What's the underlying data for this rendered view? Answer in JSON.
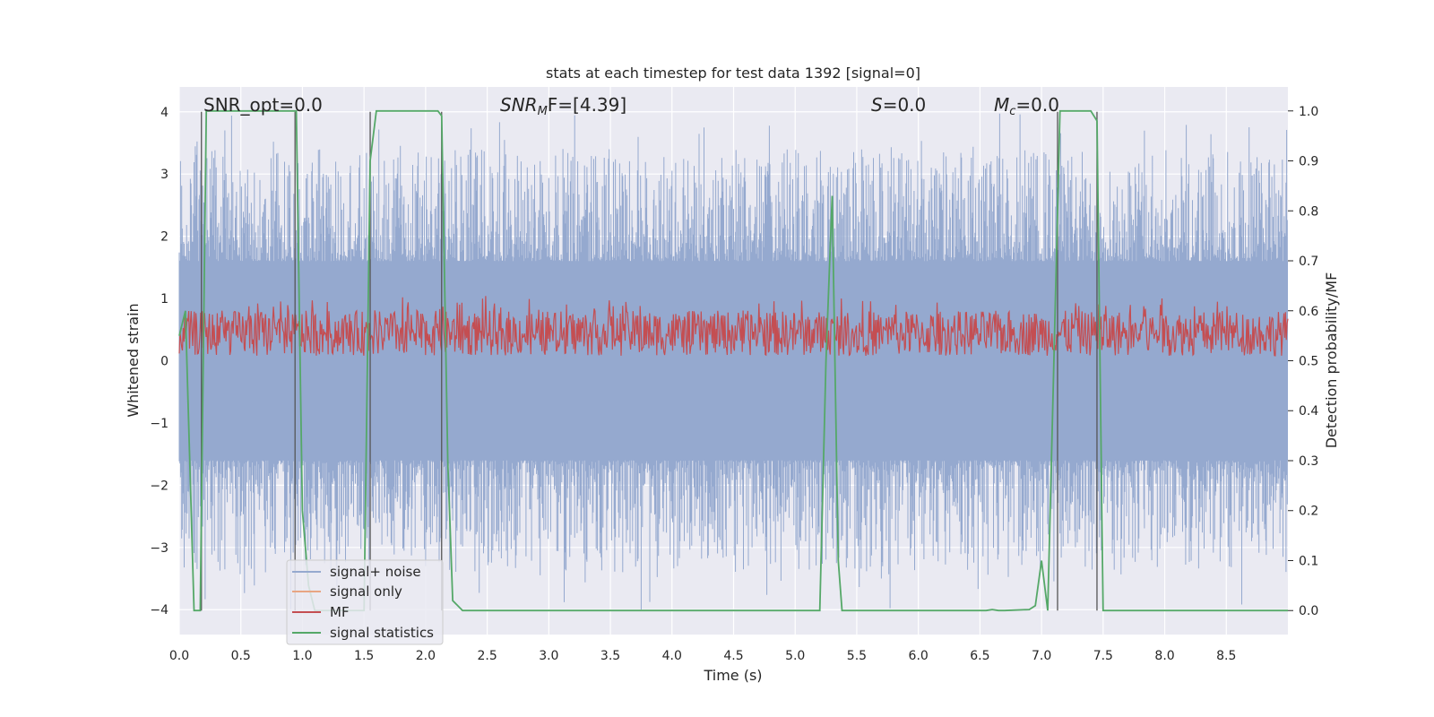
{
  "chart_data": {
    "type": "line",
    "title": "stats at each timestep for test data 1392 [signal=0]",
    "xlabel": "Time (s)",
    "ylabel_left": "Whitened strain",
    "ylabel_right": "Detection probability/MF",
    "xlim": [
      0,
      9.0
    ],
    "ylim_left": [
      -4.4,
      4.4
    ],
    "ylim_right": [
      -0.048,
      1.048
    ],
    "xticks": [
      0.0,
      0.5,
      1.0,
      1.5,
      2.0,
      2.5,
      3.0,
      3.5,
      4.0,
      4.5,
      5.0,
      5.5,
      6.0,
      6.5,
      7.0,
      7.5,
      8.0,
      8.5
    ],
    "xtick_labels": [
      "0.0",
      "0.5",
      "1.0",
      "1.5",
      "2.0",
      "2.5",
      "3.0",
      "3.5",
      "4.0",
      "4.5",
      "5.0",
      "5.5",
      "6.0",
      "6.5",
      "7.0",
      "7.5",
      "8.0",
      "8.5"
    ],
    "yticks_left": [
      -4,
      -3,
      -2,
      -1,
      0,
      1,
      2,
      3,
      4
    ],
    "ytick_labels_left": [
      "−4",
      "−3",
      "−2",
      "−1",
      "0",
      "1",
      "2",
      "3",
      "4"
    ],
    "yticks_right": [
      0.0,
      0.1,
      0.2,
      0.3,
      0.4,
      0.5,
      0.6,
      0.7,
      0.8,
      0.9,
      1.0
    ],
    "ytick_labels_right": [
      "0.0",
      "0.1",
      "0.2",
      "0.3",
      "0.4",
      "0.5",
      "0.6",
      "0.7",
      "0.8",
      "0.9",
      "1.0"
    ],
    "grid": true,
    "legend_placement": "lower-left",
    "annotations": {
      "snr_opt": "SNR_opt=0.0",
      "snr_mf_prefix": "SNR",
      "snr_mf_sub": "M",
      "snr_mf_suffix": "F=[4.39]",
      "s_prefix": "S",
      "s_suffix": "=0.0",
      "mc_prefix": "M",
      "mc_sub": "c",
      "mc_suffix": "=0.0"
    },
    "series": [
      {
        "name": "signal+ noise",
        "color": "#95a9cf",
        "description": "dense noise band, mostly within ±1.6, spikes up to about ±4",
        "band": [
          -1.6,
          1.6
        ],
        "peak_range": [
          -4.0,
          4.0
        ]
      },
      {
        "name": "signal only",
        "color": "#e8a583",
        "values": []
      },
      {
        "name": "MF",
        "color": "#c44e52",
        "axis": "right",
        "band": [
          0.51,
          0.6
        ]
      },
      {
        "name": "signal statistics",
        "color": "#55a868",
        "axis": "right",
        "x": [
          0.0,
          0.05,
          0.12,
          0.17,
          0.22,
          0.25,
          0.95,
          1.0,
          1.05,
          1.1,
          1.5,
          1.55,
          1.6,
          2.1,
          2.13,
          2.18,
          2.22,
          2.3,
          5.2,
          5.25,
          5.3,
          5.35,
          5.38,
          6.55,
          6.6,
          6.65,
          6.7,
          6.9,
          6.95,
          7.0,
          7.05,
          7.1,
          7.15,
          7.2,
          7.4,
          7.45,
          7.5,
          9.0
        ],
        "y": [
          0.55,
          0.6,
          0.0,
          0.0,
          1.0,
          1.0,
          1.0,
          0.2,
          0.05,
          0.0,
          0.0,
          0.9,
          1.0,
          1.0,
          0.99,
          0.3,
          0.02,
          0.0,
          0.0,
          0.5,
          0.83,
          0.1,
          0.0,
          0.0,
          0.002,
          0.0,
          0.0,
          0.002,
          0.01,
          0.1,
          0.0,
          0.5,
          1.0,
          1.0,
          1.0,
          0.98,
          0.0,
          0.0
        ]
      }
    ],
    "vertical_lines_x": [
      0.18,
      0.94,
      1.55,
      2.13,
      7.13,
      7.45
    ]
  }
}
